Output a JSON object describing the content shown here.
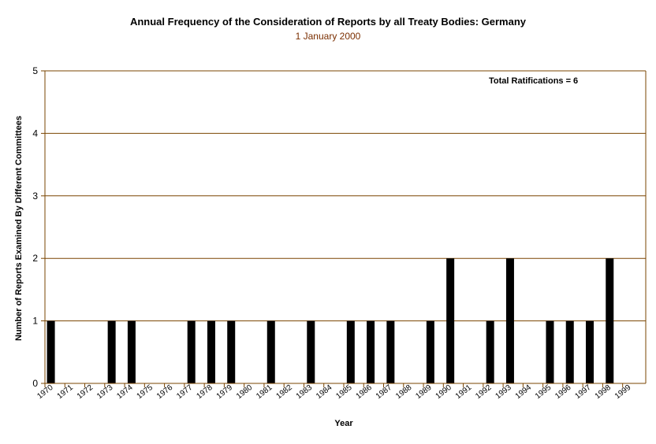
{
  "chart_data": {
    "type": "bar",
    "title": "Annual Frequency of the Consideration of Reports by all Treaty Bodies: Germany",
    "subtitle": "1 January 2000",
    "xlabel": "Year",
    "ylabel": "Number of Reports Examined By Different Committees",
    "annotation": "Total Ratifications = 6",
    "ylim": [
      0,
      5
    ],
    "yticks": [
      0,
      1,
      2,
      3,
      4,
      5
    ],
    "grid": true,
    "categories": [
      "1970",
      "1971",
      "1972",
      "1973",
      "1974",
      "1975",
      "1976",
      "1977",
      "1978",
      "1979",
      "1980",
      "1981",
      "1982",
      "1983",
      "1984",
      "1985",
      "1986",
      "1987",
      "1988",
      "1989",
      "1990",
      "1991",
      "1992",
      "1993",
      "1994",
      "1995",
      "1996",
      "1997",
      "1998",
      "1999"
    ],
    "bars": [
      {
        "x": 1970.3,
        "value": 1
      },
      {
        "x": 1973.35,
        "value": 1
      },
      {
        "x": 1974.35,
        "value": 1
      },
      {
        "x": 1977.35,
        "value": 1
      },
      {
        "x": 1978.35,
        "value": 1
      },
      {
        "x": 1979.35,
        "value": 1
      },
      {
        "x": 1981.35,
        "value": 1
      },
      {
        "x": 1983.35,
        "value": 1
      },
      {
        "x": 1985.35,
        "value": 1
      },
      {
        "x": 1986.35,
        "value": 1
      },
      {
        "x": 1987.35,
        "value": 1
      },
      {
        "x": 1989.35,
        "value": 1
      },
      {
        "x": 1990.35,
        "value": 2
      },
      {
        "x": 1992.35,
        "value": 1
      },
      {
        "x": 1993.35,
        "value": 2
      },
      {
        "x": 1995.35,
        "value": 1
      },
      {
        "x": 1996.35,
        "value": 1
      },
      {
        "x": 1997.35,
        "value": 1
      },
      {
        "x": 1998.35,
        "value": 2
      }
    ],
    "colors": {
      "bar": "#000000",
      "grid": "#7a4400",
      "axis": "#7a4400"
    }
  }
}
